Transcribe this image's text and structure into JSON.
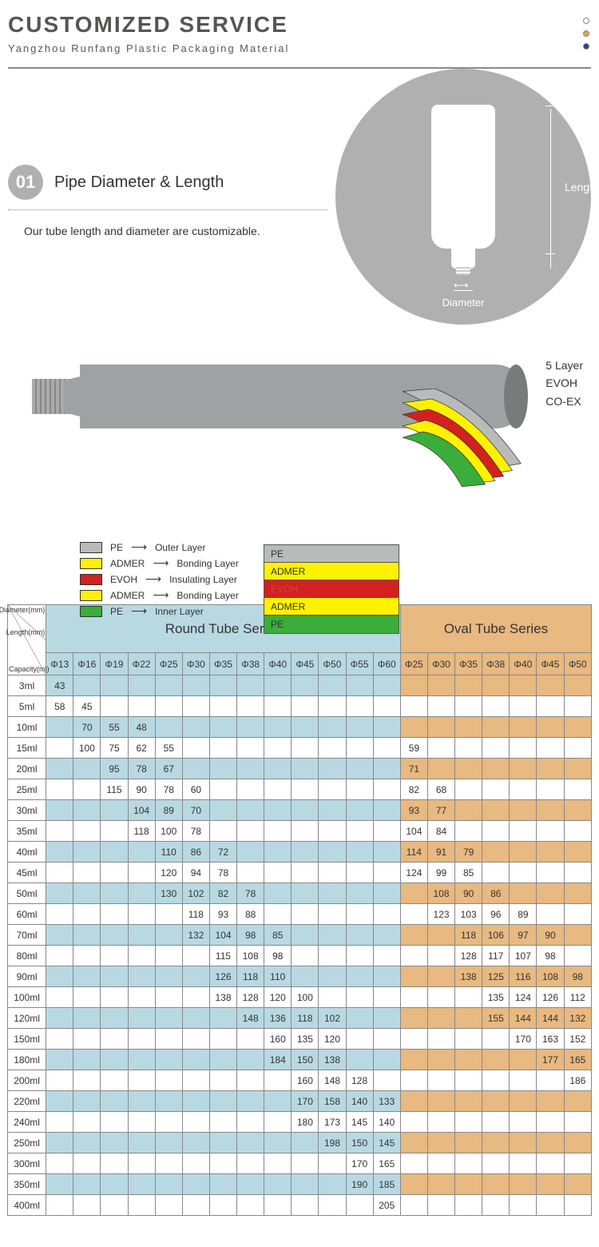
{
  "header": {
    "title": "CUSTOMIZED SERVICE",
    "subtitle": "Yangzhou Runfang Plastic Packaging Material",
    "dot_colors": [
      "#ffffff",
      "#e8a23c",
      "#2a3e8f"
    ],
    "dot_border": "#888"
  },
  "section1": {
    "badge_num": "01",
    "title": "Pipe Diameter & Length",
    "desc": "Our tube length and diameter are customizable.",
    "length_label": "Length",
    "diameter_label": "Diameter",
    "circle_color": "#b0b0b0"
  },
  "layers": {
    "spec": [
      "5 Layer",
      "EVOH",
      "CO-EX"
    ],
    "bands": [
      {
        "label": "PE",
        "color": "#b9bbbb"
      },
      {
        "label": "ADMER",
        "color": "#fff200"
      },
      {
        "label": "EVOH",
        "color": "#d4201f"
      },
      {
        "label": "ADMER",
        "color": "#fff200"
      },
      {
        "label": "PE",
        "color": "#3aad3a"
      }
    ],
    "legend": [
      {
        "code": "PE",
        "desc": "Outer Layer",
        "color": "#b9bbbb"
      },
      {
        "code": "ADMER",
        "desc": "Bonding Layer",
        "color": "#fff200"
      },
      {
        "code": "EVOH",
        "desc": "Insulating Layer",
        "color": "#d4201f"
      },
      {
        "code": "ADMER",
        "desc": "Bonding Layer",
        "color": "#fff200"
      },
      {
        "code": "PE",
        "desc": "Inner Layer",
        "color": "#3aad3a"
      }
    ]
  },
  "table": {
    "corner_labels": [
      "Diameter(mm)",
      "Length(mm)",
      "Capacity(ml)"
    ],
    "round_title": "Round Tube Series",
    "oval_title": "Oval Tube Series",
    "round_cols": [
      "Φ13",
      "Φ16",
      "Φ19",
      "Φ22",
      "Φ25",
      "Φ30",
      "Φ35",
      "Φ38",
      "Φ40",
      "Φ45",
      "Φ50",
      "Φ55",
      "Φ60"
    ],
    "oval_cols": [
      "Φ25",
      "Φ30",
      "Φ35",
      "Φ38",
      "Φ40",
      "Φ45",
      "Φ50"
    ],
    "round_color": "#b8d9e2",
    "oval_color": "#e8b980",
    "rows": [
      {
        "cap": "3ml",
        "r": [
          "43",
          "",
          "",
          "",
          "",
          "",
          "",
          "",
          "",
          "",
          "",
          "",
          ""
        ],
        "o": [
          "",
          "",
          "",
          "",
          "",
          "",
          ""
        ],
        "hl": "round"
      },
      {
        "cap": "5ml",
        "r": [
          "58",
          "45",
          "",
          "",
          "",
          "",
          "",
          "",
          "",
          "",
          "",
          "",
          ""
        ],
        "o": [
          "",
          "",
          "",
          "",
          "",
          "",
          ""
        ],
        "hl": "none"
      },
      {
        "cap": "10ml",
        "r": [
          "",
          "70",
          "55",
          "48",
          "",
          "",
          "",
          "",
          "",
          "",
          "",
          "",
          ""
        ],
        "o": [
          "",
          "",
          "",
          "",
          "",
          "",
          ""
        ],
        "hl": "round"
      },
      {
        "cap": "15ml",
        "r": [
          "",
          "100",
          "75",
          "62",
          "55",
          "",
          "",
          "",
          "",
          "",
          "",
          "",
          ""
        ],
        "o": [
          "59",
          "",
          "",
          "",
          "",
          "",
          ""
        ],
        "hl": "both"
      },
      {
        "cap": "20ml",
        "r": [
          "",
          "",
          "95",
          "78",
          "67",
          "",
          "",
          "",
          "",
          "",
          "",
          "",
          ""
        ],
        "o": [
          "71",
          "",
          "",
          "",
          "",
          "",
          ""
        ],
        "hl": "round"
      },
      {
        "cap": "25ml",
        "r": [
          "",
          "",
          "115",
          "90",
          "78",
          "60",
          "",
          "",
          "",
          "",
          "",
          "",
          ""
        ],
        "o": [
          "82",
          "68",
          "",
          "",
          "",
          "",
          ""
        ],
        "hl": "both"
      },
      {
        "cap": "30ml",
        "r": [
          "",
          "",
          "",
          "104",
          "89",
          "70",
          "",
          "",
          "",
          "",
          "",
          "",
          ""
        ],
        "o": [
          "93",
          "77",
          "",
          "",
          "",
          "",
          ""
        ],
        "hl": "round"
      },
      {
        "cap": "35ml",
        "r": [
          "",
          "",
          "",
          "118",
          "100",
          "78",
          "",
          "",
          "",
          "",
          "",
          "",
          ""
        ],
        "o": [
          "104",
          "84",
          "",
          "",
          "",
          "",
          ""
        ],
        "hl": "both"
      },
      {
        "cap": "40ml",
        "r": [
          "",
          "",
          "",
          "",
          "110",
          "86",
          "72",
          "",
          "",
          "",
          "",
          "",
          ""
        ],
        "o": [
          "114",
          "91",
          "79",
          "",
          "",
          "",
          ""
        ],
        "hl": "round"
      },
      {
        "cap": "45ml",
        "r": [
          "",
          "",
          "",
          "",
          "120",
          "94",
          "78",
          "",
          "",
          "",
          "",
          "",
          ""
        ],
        "o": [
          "124",
          "99",
          "85",
          "",
          "",
          "",
          ""
        ],
        "hl": "both"
      },
      {
        "cap": "50ml",
        "r": [
          "",
          "",
          "",
          "",
          "130",
          "102",
          "82",
          "78",
          "",
          "",
          "",
          "",
          ""
        ],
        "o": [
          "",
          "108",
          "90",
          "86",
          "",
          "",
          ""
        ],
        "hl": "round"
      },
      {
        "cap": "60ml",
        "r": [
          "",
          "",
          "",
          "",
          "",
          "118",
          "93",
          "88",
          "",
          "",
          "",
          "",
          ""
        ],
        "o": [
          "",
          "123",
          "103",
          "96",
          "89",
          "",
          ""
        ],
        "hl": "both"
      },
      {
        "cap": "70ml",
        "r": [
          "",
          "",
          "",
          "",
          "",
          "132",
          "104",
          "98",
          "85",
          "",
          "",
          "",
          ""
        ],
        "o": [
          "",
          "",
          "118",
          "106",
          "97",
          "90",
          ""
        ],
        "hl": "round"
      },
      {
        "cap": "80ml",
        "r": [
          "",
          "",
          "",
          "",
          "",
          "",
          "115",
          "108",
          "98",
          "",
          "",
          "",
          ""
        ],
        "o": [
          "",
          "",
          "128",
          "117",
          "107",
          "98",
          ""
        ],
        "hl": "both"
      },
      {
        "cap": "90ml",
        "r": [
          "",
          "",
          "",
          "",
          "",
          "",
          "126",
          "118",
          "110",
          "",
          "",
          "",
          ""
        ],
        "o": [
          "",
          "",
          "138",
          "125",
          "116",
          "108",
          "98"
        ],
        "hl": "round"
      },
      {
        "cap": "100ml",
        "r": [
          "",
          "",
          "",
          "",
          "",
          "",
          "138",
          "128",
          "120",
          "100",
          "",
          "",
          ""
        ],
        "o": [
          "",
          "",
          "",
          "135",
          "124",
          "126",
          "112"
        ],
        "hl": "both"
      },
      {
        "cap": "120ml",
        "r": [
          "",
          "",
          "",
          "",
          "",
          "",
          "",
          "148",
          "136",
          "118",
          "102",
          "",
          ""
        ],
        "o": [
          "",
          "",
          "",
          "155",
          "144",
          "144",
          "132"
        ],
        "hl": "round"
      },
      {
        "cap": "150ml",
        "r": [
          "",
          "",
          "",
          "",
          "",
          "",
          "",
          "",
          "160",
          "135",
          "120",
          "",
          ""
        ],
        "o": [
          "",
          "",
          "",
          "",
          "170",
          "163",
          "152"
        ],
        "hl": "both"
      },
      {
        "cap": "180ml",
        "r": [
          "",
          "",
          "",
          "",
          "",
          "",
          "",
          "",
          "184",
          "150",
          "138",
          "",
          ""
        ],
        "o": [
          "",
          "",
          "",
          "",
          "",
          "177",
          "165"
        ],
        "hl": "round"
      },
      {
        "cap": "200ml",
        "r": [
          "",
          "",
          "",
          "",
          "",
          "",
          "",
          "",
          "",
          "160",
          "148",
          "128",
          ""
        ],
        "o": [
          "",
          "",
          "",
          "",
          "",
          "",
          "186"
        ],
        "hl": "both"
      },
      {
        "cap": "220ml",
        "r": [
          "",
          "",
          "",
          "",
          "",
          "",
          "",
          "",
          "",
          "170",
          "158",
          "140",
          "133"
        ],
        "o": [
          "",
          "",
          "",
          "",
          "",
          "",
          ""
        ],
        "hl": "round"
      },
      {
        "cap": "240ml",
        "r": [
          "",
          "",
          "",
          "",
          "",
          "",
          "",
          "",
          "",
          "180",
          "173",
          "145",
          "140"
        ],
        "o": [
          "",
          "",
          "",
          "",
          "",
          "",
          ""
        ],
        "hl": "both"
      },
      {
        "cap": "250ml",
        "r": [
          "",
          "",
          "",
          "",
          "",
          "",
          "",
          "",
          "",
          "",
          "198",
          "150",
          "145"
        ],
        "o": [
          "",
          "",
          "",
          "",
          "",
          "",
          ""
        ],
        "hl": "round"
      },
      {
        "cap": "300ml",
        "r": [
          "",
          "",
          "",
          "",
          "",
          "",
          "",
          "",
          "",
          "",
          "",
          "170",
          "165"
        ],
        "o": [
          "",
          "",
          "",
          "",
          "",
          "",
          ""
        ],
        "hl": "both"
      },
      {
        "cap": "350ml",
        "r": [
          "",
          "",
          "",
          "",
          "",
          "",
          "",
          "",
          "",
          "",
          "",
          "190",
          "185"
        ],
        "o": [
          "",
          "",
          "",
          "",
          "",
          "",
          ""
        ],
        "hl": "round"
      },
      {
        "cap": "400ml",
        "r": [
          "",
          "",
          "",
          "",
          "",
          "",
          "",
          "",
          "",
          "",
          "",
          "",
          "205"
        ],
        "o": [
          "",
          "",
          "",
          "",
          "",
          "",
          ""
        ],
        "hl": "both"
      }
    ]
  }
}
